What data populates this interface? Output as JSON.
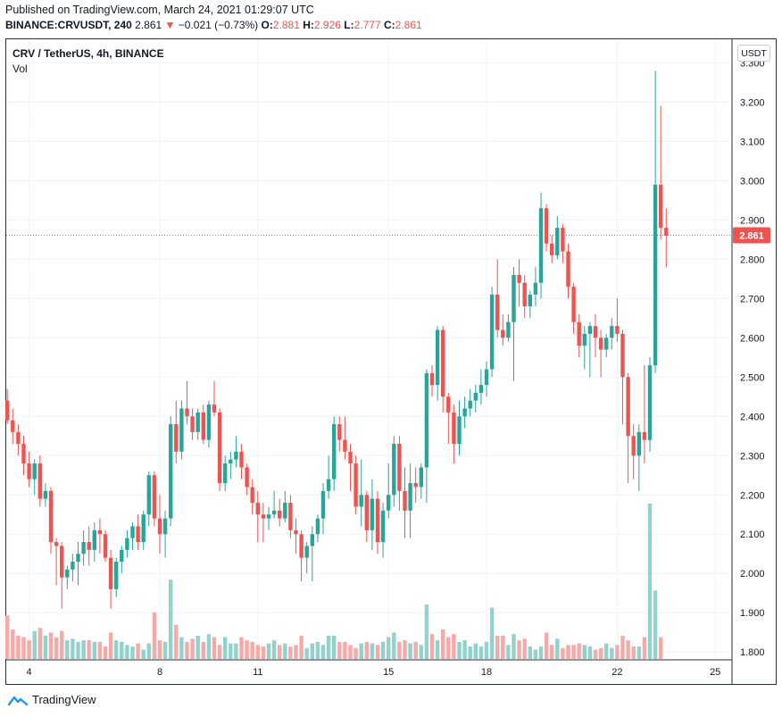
{
  "header": {
    "published": "Published on TradingView.com, March 24, 2021 01:29:07 UTC",
    "symbol_line": "BINANCE:CRVUSDT, 240",
    "last": "2.861",
    "arrow": "▼",
    "change": "−0.021 (−0.73%)",
    "o_label": "O:",
    "o": "2.881",
    "h_label": "H:",
    "h": "2.926",
    "l_label": "L:",
    "l": "2.777",
    "c_label": "C:",
    "c": "2.861"
  },
  "legend": {
    "symbol": "CRV / TetherUS, 4h, BINANCE",
    "vol": "Vol"
  },
  "currency_button": "USDT",
  "footer": {
    "brand": "TradingView"
  },
  "colors": {
    "up": "#26a69a",
    "down": "#ef5350",
    "up_vol": "#92d2cc",
    "down_vol": "#f7a9a7",
    "grid": "#f0f3fa",
    "price_line": "#ef5350"
  },
  "chart_data": {
    "type": "candlestick",
    "y_ticks": [
      "3.300",
      "3.200",
      "3.100",
      "3.000",
      "2.900",
      "2.800",
      "2.700",
      "2.600",
      "2.500",
      "2.400",
      "2.300",
      "2.200",
      "2.100",
      "2.000",
      "1.900",
      "1.800"
    ],
    "ylim": [
      1.78,
      3.36
    ],
    "x_ticks": [
      {
        "label": "4",
        "index": 4
      },
      {
        "label": "8",
        "index": 28
      },
      {
        "label": "11",
        "index": 46
      },
      {
        "label": "15",
        "index": 70
      },
      {
        "label": "18",
        "index": 88
      },
      {
        "label": "22",
        "index": 112
      },
      {
        "label": "25",
        "index": 130
      }
    ],
    "last_price": 2.861,
    "last_price_label": "2.861",
    "candles": [
      [
        2.44,
        2.47,
        2.38,
        2.39
      ],
      [
        2.39,
        2.42,
        2.33,
        2.36
      ],
      [
        2.36,
        2.38,
        2.3,
        2.33
      ],
      [
        2.33,
        2.35,
        2.25,
        2.28
      ],
      [
        2.28,
        2.31,
        2.22,
        2.24
      ],
      [
        2.24,
        2.29,
        2.2,
        2.28
      ],
      [
        2.28,
        2.3,
        2.17,
        2.19
      ],
      [
        2.19,
        2.23,
        2.17,
        2.21
      ],
      [
        2.21,
        2.22,
        2.05,
        2.08
      ],
      [
        2.08,
        2.09,
        1.97,
        2.07
      ],
      [
        2.07,
        2.08,
        1.91,
        1.99
      ],
      [
        1.99,
        2.02,
        1.96,
        2.01
      ],
      [
        2.01,
        2.05,
        1.98,
        2.03
      ],
      [
        2.03,
        2.08,
        1.97,
        2.05
      ],
      [
        2.05,
        2.11,
        2.02,
        2.08
      ],
      [
        2.08,
        2.12,
        2.02,
        2.06
      ],
      [
        2.06,
        2.13,
        2.03,
        2.11
      ],
      [
        2.11,
        2.14,
        2.05,
        2.1
      ],
      [
        2.1,
        2.11,
        2.03,
        2.04
      ],
      [
        2.04,
        2.06,
        1.91,
        1.96
      ],
      [
        1.96,
        2.04,
        1.94,
        2.03
      ],
      [
        2.03,
        2.07,
        2.0,
        2.06
      ],
      [
        2.06,
        2.11,
        2.04,
        2.09
      ],
      [
        2.09,
        2.13,
        2.06,
        2.12
      ],
      [
        2.12,
        2.15,
        2.06,
        2.08
      ],
      [
        2.08,
        2.16,
        2.06,
        2.15
      ],
      [
        2.15,
        2.26,
        2.12,
        2.25
      ],
      [
        2.25,
        2.26,
        2.12,
        2.14
      ],
      [
        2.14,
        2.2,
        2.05,
        2.1
      ],
      [
        2.1,
        2.16,
        2.04,
        2.14
      ],
      [
        2.14,
        2.4,
        2.12,
        2.38
      ],
      [
        2.38,
        2.44,
        2.28,
        2.31
      ],
      [
        2.31,
        2.44,
        2.29,
        2.42
      ],
      [
        2.42,
        2.49,
        2.38,
        2.4
      ],
      [
        2.4,
        2.42,
        2.34,
        2.36
      ],
      [
        2.36,
        2.42,
        2.34,
        2.41
      ],
      [
        2.41,
        2.43,
        2.33,
        2.34
      ],
      [
        2.34,
        2.44,
        2.32,
        2.43
      ],
      [
        2.43,
        2.49,
        2.4,
        2.41
      ],
      [
        2.41,
        2.42,
        2.21,
        2.23
      ],
      [
        2.23,
        2.3,
        2.21,
        2.28
      ],
      [
        2.28,
        2.31,
        2.24,
        2.29
      ],
      [
        2.29,
        2.35,
        2.27,
        2.31
      ],
      [
        2.31,
        2.33,
        2.24,
        2.27
      ],
      [
        2.27,
        2.28,
        2.2,
        2.22
      ],
      [
        2.22,
        2.24,
        2.15,
        2.18
      ],
      [
        2.18,
        2.21,
        2.08,
        2.15
      ],
      [
        2.15,
        2.18,
        2.08,
        2.14
      ],
      [
        2.14,
        2.17,
        2.11,
        2.15
      ],
      [
        2.15,
        2.21,
        2.14,
        2.16
      ],
      [
        2.16,
        2.19,
        2.12,
        2.14
      ],
      [
        2.14,
        2.21,
        2.13,
        2.18
      ],
      [
        2.18,
        2.2,
        2.09,
        2.11
      ],
      [
        2.11,
        2.14,
        2.05,
        2.1
      ],
      [
        2.1,
        2.11,
        1.98,
        2.04
      ],
      [
        2.04,
        2.08,
        2.0,
        2.07
      ],
      [
        2.07,
        2.12,
        1.98,
        2.1
      ],
      [
        2.1,
        2.15,
        2.08,
        2.14
      ],
      [
        2.14,
        2.23,
        2.1,
        2.21
      ],
      [
        2.21,
        2.3,
        2.19,
        2.24
      ],
      [
        2.24,
        2.4,
        2.21,
        2.38
      ],
      [
        2.38,
        2.4,
        2.31,
        2.34
      ],
      [
        2.34,
        2.4,
        2.29,
        2.31
      ],
      [
        2.31,
        2.33,
        2.21,
        2.28
      ],
      [
        2.28,
        2.3,
        2.15,
        2.17
      ],
      [
        2.17,
        2.29,
        2.12,
        2.2
      ],
      [
        2.2,
        2.21,
        2.08,
        2.11
      ],
      [
        2.11,
        2.24,
        2.06,
        2.19
      ],
      [
        2.19,
        2.21,
        2.05,
        2.08
      ],
      [
        2.08,
        2.18,
        2.04,
        2.16
      ],
      [
        2.16,
        2.28,
        2.14,
        2.2
      ],
      [
        2.2,
        2.35,
        2.17,
        2.33
      ],
      [
        2.33,
        2.35,
        2.16,
        2.21
      ],
      [
        2.21,
        2.27,
        2.09,
        2.16
      ],
      [
        2.16,
        2.28,
        2.09,
        2.23
      ],
      [
        2.23,
        2.27,
        2.18,
        2.22
      ],
      [
        2.22,
        2.28,
        2.19,
        2.27
      ],
      [
        2.27,
        2.52,
        2.18,
        2.51
      ],
      [
        2.51,
        2.53,
        2.45,
        2.48
      ],
      [
        2.48,
        2.63,
        2.44,
        2.62
      ],
      [
        2.62,
        2.63,
        2.41,
        2.45
      ],
      [
        2.45,
        2.46,
        2.33,
        2.41
      ],
      [
        2.41,
        2.43,
        2.28,
        2.33
      ],
      [
        2.33,
        2.44,
        2.3,
        2.4
      ],
      [
        2.4,
        2.45,
        2.37,
        2.42
      ],
      [
        2.42,
        2.47,
        2.4,
        2.44
      ],
      [
        2.44,
        2.48,
        2.41,
        2.46
      ],
      [
        2.46,
        2.52,
        2.43,
        2.48
      ],
      [
        2.48,
        2.54,
        2.45,
        2.52
      ],
      [
        2.52,
        2.73,
        2.5,
        2.71
      ],
      [
        2.71,
        2.8,
        2.6,
        2.62
      ],
      [
        2.62,
        2.66,
        2.58,
        2.6
      ],
      [
        2.6,
        2.66,
        2.59,
        2.64
      ],
      [
        2.64,
        2.78,
        2.49,
        2.76
      ],
      [
        2.76,
        2.8,
        2.68,
        2.74
      ],
      [
        2.74,
        2.76,
        2.65,
        2.68
      ],
      [
        2.68,
        2.72,
        2.65,
        2.71
      ],
      [
        2.71,
        2.78,
        2.68,
        2.74
      ],
      [
        2.74,
        2.97,
        2.7,
        2.93
      ],
      [
        2.93,
        2.94,
        2.82,
        2.84
      ],
      [
        2.84,
        2.86,
        2.79,
        2.81
      ],
      [
        2.81,
        2.91,
        2.8,
        2.88
      ],
      [
        2.88,
        2.89,
        2.79,
        2.82
      ],
      [
        2.82,
        2.84,
        2.7,
        2.73
      ],
      [
        2.73,
        2.74,
        2.61,
        2.64
      ],
      [
        2.64,
        2.66,
        2.55,
        2.58
      ],
      [
        2.58,
        2.63,
        2.52,
        2.61
      ],
      [
        2.61,
        2.64,
        2.5,
        2.63
      ],
      [
        2.63,
        2.66,
        2.55,
        2.6
      ],
      [
        2.6,
        2.62,
        2.5,
        2.57
      ],
      [
        2.57,
        2.61,
        2.55,
        2.6
      ],
      [
        2.6,
        2.65,
        2.57,
        2.63
      ],
      [
        2.63,
        2.7,
        2.59,
        2.61
      ],
      [
        2.61,
        2.62,
        2.38,
        2.5
      ],
      [
        2.5,
        2.51,
        2.23,
        2.35
      ],
      [
        2.35,
        2.38,
        2.24,
        2.3
      ],
      [
        2.3,
        2.38,
        2.21,
        2.36
      ],
      [
        2.36,
        2.53,
        2.28,
        2.34
      ],
      [
        2.34,
        2.55,
        2.31,
        2.53
      ],
      [
        2.53,
        3.28,
        2.51,
        2.99
      ],
      [
        2.99,
        3.19,
        2.85,
        2.88
      ],
      [
        2.88,
        2.93,
        2.78,
        2.86
      ]
    ],
    "volumes": [
      0.28,
      0.19,
      0.15,
      0.14,
      0.12,
      0.18,
      0.2,
      0.15,
      0.17,
      0.14,
      0.18,
      0.12,
      0.13,
      0.11,
      0.12,
      0.12,
      0.11,
      0.11,
      0.08,
      0.17,
      0.12,
      0.11,
      0.09,
      0.08,
      0.1,
      0.06,
      0.1,
      0.3,
      0.12,
      0.11,
      0.51,
      0.22,
      0.14,
      0.11,
      0.13,
      0.15,
      0.11,
      0.16,
      0.14,
      0.09,
      0.14,
      0.1,
      0.1,
      0.14,
      0.12,
      0.11,
      0.09,
      0.08,
      0.1,
      0.12,
      0.09,
      0.1,
      0.08,
      0.09,
      0.15,
      0.07,
      0.1,
      0.11,
      0.09,
      0.15,
      0.15,
      0.11,
      0.11,
      0.09,
      0.07,
      0.1,
      0.11,
      0.1,
      0.09,
      0.11,
      0.14,
      0.17,
      0.11,
      0.12,
      0.1,
      0.11,
      0.09,
      0.35,
      0.16,
      0.12,
      0.19,
      0.14,
      0.16,
      0.11,
      0.12,
      0.08,
      0.1,
      0.08,
      0.11,
      0.33,
      0.15,
      0.15,
      0.09,
      0.16,
      0.12,
      0.13,
      0.08,
      0.06,
      0.08,
      0.17,
      0.09,
      0.13,
      0.07,
      0.09,
      0.09,
      0.1,
      0.09,
      0.08,
      0.06,
      0.07,
      0.1,
      0.07,
      0.09,
      0.15,
      0.12,
      0.08,
      0.08,
      0.14,
      1.0,
      0.44,
      0.14
    ]
  }
}
